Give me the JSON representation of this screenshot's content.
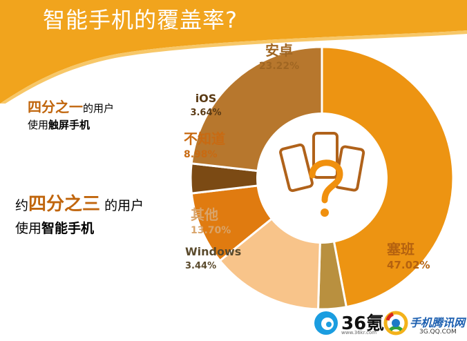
{
  "title": "智能手机的覆盖率?",
  "note1": {
    "lead": "四分之一",
    "l1_rest": "的用户",
    "l2_a": "使用",
    "l2_b": "触屏手机"
  },
  "note2": {
    "pre": "约",
    "lead": "四分之三",
    "l1_rest": " 的用户",
    "l2_a": "使用",
    "l2_b": "智能手机"
  },
  "colors": {
    "banner": "#f1a41d",
    "banner_edge": "#f7c768",
    "accent": "#c0650c"
  },
  "chart_data": {
    "type": "pie",
    "donut": true,
    "start": "starting at the top, clockwise",
    "slices": [
      {
        "label": "塞班",
        "value_text": "47.02%",
        "value": 47.02,
        "color": "#ed9412",
        "label_color": "#b5620f"
      },
      {
        "label": "Windows",
        "value_text": "3.44%",
        "value": 3.44,
        "color": "#b9903f",
        "label_color": "#5a4a2c"
      },
      {
        "label": "其他",
        "value_text": "13.70%",
        "value": 13.7,
        "color": "#f8c48a",
        "label_color": "#d9a46a"
      },
      {
        "label": "不知道",
        "value_text": "8.98%",
        "value": 8.98,
        "color": "#e07b10",
        "label_color": "#c86a12"
      },
      {
        "label": "iOS",
        "value_text": "3.64%",
        "value": 3.64,
        "color": "#7b4a14",
        "label_color": "#5a3a14"
      },
      {
        "label": "安卓",
        "value_text": "23.22%",
        "value": 23.22,
        "color": "#b7772d",
        "label_color": "#a06622"
      }
    ]
  },
  "logos": {
    "kr36": {
      "num": "36氪",
      "url": "www.36kr.com"
    },
    "qq": {
      "name": "手机腾讯网",
      "url": "3G.QQ.COM"
    }
  },
  "center_icon": "phones-question-icon"
}
